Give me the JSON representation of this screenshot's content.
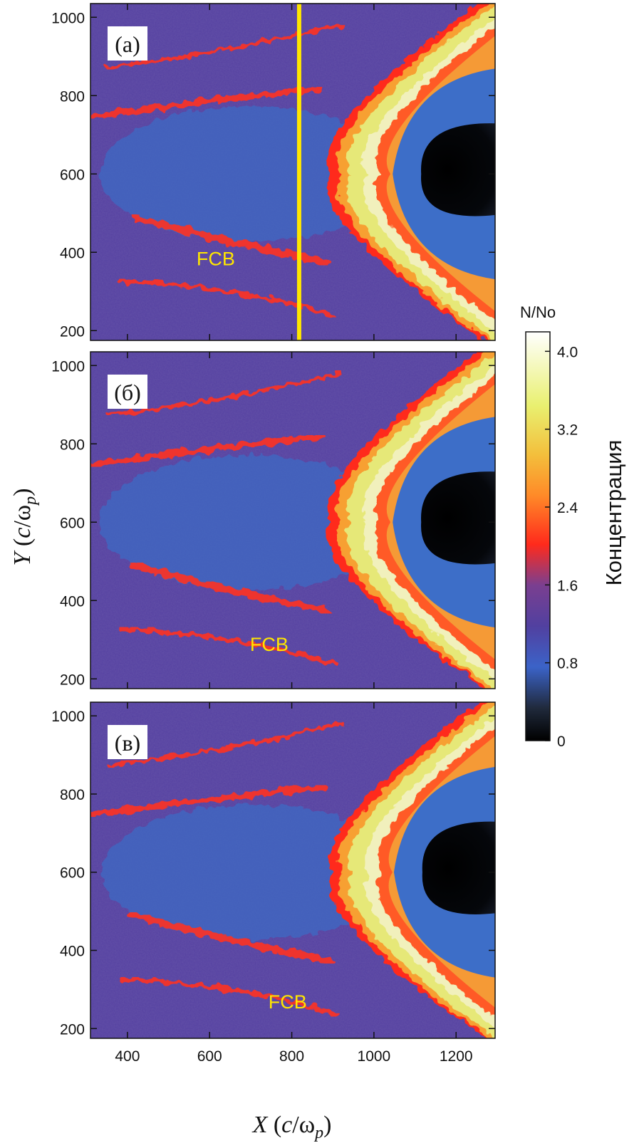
{
  "chart_data": {
    "type": "heatmap",
    "description_units": "X and Y in c/omega_p; color = density N/No",
    "xlabel": "X (c/ωp)",
    "ylabel": "Y (c/ωp)",
    "xlim": [
      310,
      1295
    ],
    "ylim": [
      175,
      1035
    ],
    "x_ticks": [
      400,
      600,
      800,
      1000,
      1200
    ],
    "y_ticks": [
      200,
      400,
      600,
      800,
      1000
    ],
    "colorbar": {
      "title": "Концентрация",
      "unit_label": "N/No",
      "range": [
        0,
        4.2
      ],
      "ticks": [
        "0",
        "0.8",
        "1.6",
        "2.4",
        "3.2",
        "4.0"
      ],
      "tick_values": [
        0,
        0.8,
        1.6,
        2.4,
        3.2,
        4.0
      ],
      "colors": [
        "#000000",
        "#3b63c8",
        "#5542a0",
        "#ff2a1c",
        "#ff9a2e",
        "#e9f070",
        "#ffffff"
      ]
    },
    "background_color": "#5541a1",
    "panels": [
      {
        "tag": "(а)",
        "annotation": "FCB",
        "annotation_pos": [
          615,
          385
        ],
        "vertical_line_x": 818,
        "vertical_line_color": "#ffe600",
        "bow_shock_nose": [
          905,
          600
        ],
        "obstacle_nose": [
          1115,
          600
        ]
      },
      {
        "tag": "(б)",
        "annotation": "FCB",
        "annotation_pos": [
          745,
          290
        ],
        "bow_shock_nose": [
          905,
          600
        ],
        "obstacle_nose": [
          1115,
          600
        ]
      },
      {
        "tag": "(в)",
        "annotation": "FCB",
        "annotation_pos": [
          790,
          270
        ],
        "bow_shock_nose": [
          910,
          600
        ],
        "obstacle_nose": [
          1118,
          600
        ]
      }
    ]
  }
}
